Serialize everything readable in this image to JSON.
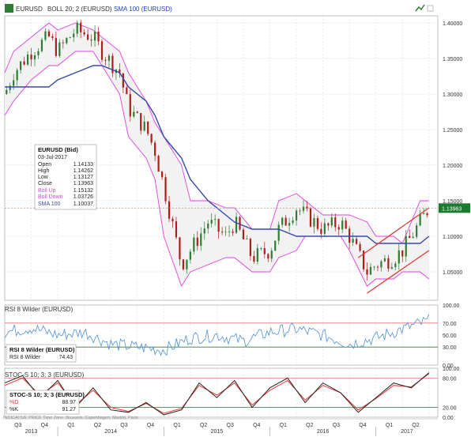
{
  "header": {
    "symbol": "EURUSD",
    "boll_label": "BOLL 20; 2 (EURUSD)",
    "sma_label": "SMA 100 (EURUSD)"
  },
  "info_box": {
    "title": "EURUSD (Bid)",
    "date": "03-Jul-2017",
    "rows": [
      {
        "label": "Open",
        "value": "1.14133"
      },
      {
        "label": "High",
        "value": "1.14262"
      },
      {
        "label": "Low",
        "value": "1.13127"
      },
      {
        "label": "Close",
        "value": "1.13963"
      },
      {
        "label": "Boll Up",
        "value": "1.15132"
      },
      {
        "label": "Boll Down",
        "value": "1.03726"
      },
      {
        "label": "SMA 100",
        "value": "1.10037"
      }
    ]
  },
  "rsi_panel": {
    "header": "RSI 8 Wilder (EURUSD)",
    "box_title": "RSI 8 Wilder (EURUSD)",
    "box_label": "RSI 8 Wilder",
    "box_value": "74.43"
  },
  "stoc_panel": {
    "header": "STOC-S 10; 3; 3 (EURUSD)",
    "box_title": "STOC-S 10; 3; 3 (EURUSD)",
    "d_label": "%D",
    "d_value": "88.97",
    "k_label": "%K",
    "k_value": "91.27"
  },
  "footer_note": "INDICATIVE PRICE   Time Zone: Brussels, Copenhagen, Madrid, Paris",
  "colors": {
    "candle_up": "#2e7d32",
    "candle_down": "#b01c1c",
    "boll": "#e040e0",
    "sma": "#3949ab",
    "channel": "#e53935",
    "rsi": "#4a90d9",
    "stoc_k": "#222222",
    "stoc_d": "#e53935",
    "level_red": "#e57373",
    "level_green": "#2e7d32",
    "price_tag": "#1a7a2e"
  },
  "chart_data": [
    {
      "type": "line",
      "name": "price",
      "x_range": [
        "2013-07",
        "2017-07"
      ],
      "ylim": [
        1.01,
        1.41
      ],
      "y_ticks": [
        "1.40000",
        "1.35000",
        "1.30000",
        "1.25000",
        "1.20000",
        "1.15000",
        "1.10000",
        "1.05000"
      ],
      "y_tick_values": [
        1.4,
        1.35,
        1.3,
        1.25,
        1.2,
        1.15,
        1.1,
        1.05
      ],
      "last_price_label": "1.13963",
      "last_price": 1.13963,
      "price_x": [
        "2013-07",
        "2013-08",
        "2013-10",
        "2013-12",
        "2014-01",
        "2014-03",
        "2014-05",
        "2014-06",
        "2014-08",
        "2014-09",
        "2014-11",
        "2014-12",
        "2015-01",
        "2015-03",
        "2015-04",
        "2015-06",
        "2015-08",
        "2015-09",
        "2015-11",
        "2016-01",
        "2016-02",
        "2016-04",
        "2016-05",
        "2016-07",
        "2016-09",
        "2016-10",
        "2016-12",
        "2017-01",
        "2017-03",
        "2017-04",
        "2017-06",
        "2017-07"
      ],
      "close": [
        1.3,
        1.33,
        1.36,
        1.38,
        1.36,
        1.39,
        1.38,
        1.36,
        1.33,
        1.28,
        1.25,
        1.22,
        1.17,
        1.06,
        1.08,
        1.12,
        1.1,
        1.12,
        1.07,
        1.08,
        1.11,
        1.14,
        1.13,
        1.11,
        1.12,
        1.1,
        1.05,
        1.06,
        1.07,
        1.08,
        1.12,
        1.14
      ],
      "boll_up": [
        1.33,
        1.36,
        1.38,
        1.4,
        1.39,
        1.4,
        1.39,
        1.38,
        1.36,
        1.33,
        1.29,
        1.26,
        1.24,
        1.2,
        1.15,
        1.15,
        1.14,
        1.14,
        1.11,
        1.11,
        1.15,
        1.16,
        1.15,
        1.13,
        1.13,
        1.13,
        1.12,
        1.1,
        1.1,
        1.09,
        1.15,
        1.15
      ],
      "boll_down": [
        1.27,
        1.29,
        1.32,
        1.34,
        1.34,
        1.36,
        1.36,
        1.34,
        1.3,
        1.24,
        1.21,
        1.18,
        1.1,
        1.03,
        1.05,
        1.06,
        1.07,
        1.07,
        1.05,
        1.05,
        1.07,
        1.08,
        1.1,
        1.1,
        1.1,
        1.08,
        1.03,
        1.04,
        1.04,
        1.05,
        1.05,
        1.04
      ],
      "sma": [
        1.31,
        1.31,
        1.31,
        1.31,
        1.32,
        1.33,
        1.34,
        1.34,
        1.33,
        1.31,
        1.29,
        1.27,
        1.24,
        1.21,
        1.18,
        1.15,
        1.13,
        1.12,
        1.11,
        1.11,
        1.11,
        1.1,
        1.1,
        1.1,
        1.1,
        1.1,
        1.1,
        1.09,
        1.09,
        1.09,
        1.09,
        1.1
      ],
      "channel_upper": [
        [
          "2016-11",
          1.07
        ],
        [
          "2017-07",
          1.14
        ]
      ],
      "channel_lower": [
        [
          "2016-12",
          1.02
        ],
        [
          "2017-07",
          1.08
        ]
      ]
    },
    {
      "type": "line",
      "name": "rsi",
      "ylim": [
        0,
        100
      ],
      "y_ticks": [
        "100.00",
        "70.00",
        "50.00",
        "30.00",
        "0.00"
      ],
      "y_tick_values": [
        100,
        70,
        50,
        30,
        0
      ],
      "levels": [
        70,
        30
      ],
      "x": [
        "2013-07",
        "2013-10",
        "2014-01",
        "2014-04",
        "2014-07",
        "2014-10",
        "2015-01",
        "2015-04",
        "2015-07",
        "2015-10",
        "2016-01",
        "2016-04",
        "2016-07",
        "2016-10",
        "2017-01",
        "2017-04",
        "2017-07"
      ],
      "values": [
        55,
        62,
        50,
        55,
        35,
        30,
        25,
        45,
        50,
        40,
        55,
        60,
        50,
        35,
        45,
        60,
        74
      ]
    },
    {
      "type": "line",
      "name": "stochastic",
      "ylim": [
        0,
        100
      ],
      "y_ticks": [
        "100.00",
        "80.00",
        "20.00",
        "0.00"
      ],
      "y_tick_values": [
        100,
        80,
        20,
        0
      ],
      "levels": [
        80,
        20
      ],
      "x": [
        "2013-07",
        "2013-09",
        "2013-11",
        "2014-01",
        "2014-03",
        "2014-05",
        "2014-07",
        "2014-09",
        "2014-11",
        "2015-01",
        "2015-03",
        "2015-05",
        "2015-07",
        "2015-09",
        "2015-11",
        "2016-01",
        "2016-03",
        "2016-05",
        "2016-07",
        "2016-09",
        "2016-11",
        "2017-01",
        "2017-03",
        "2017-05",
        "2017-07"
      ],
      "k": [
        70,
        85,
        40,
        75,
        20,
        60,
        15,
        10,
        30,
        5,
        15,
        70,
        40,
        75,
        20,
        60,
        80,
        30,
        70,
        50,
        10,
        40,
        70,
        60,
        91
      ],
      "d": [
        65,
        80,
        45,
        70,
        25,
        55,
        20,
        12,
        28,
        8,
        18,
        65,
        45,
        70,
        25,
        55,
        75,
        35,
        65,
        50,
        15,
        38,
        65,
        62,
        89
      ]
    }
  ],
  "x_axis": {
    "quarters": [
      "Q3",
      "Q4",
      "Q1",
      "Q2",
      "Q3",
      "Q4",
      "Q1",
      "Q2",
      "Q3",
      "Q4",
      "Q1",
      "Q2",
      "Q3",
      "Q4",
      "Q1",
      "Q2"
    ],
    "years": [
      "2013",
      "2014",
      "2015",
      "2016",
      "2017"
    ]
  }
}
